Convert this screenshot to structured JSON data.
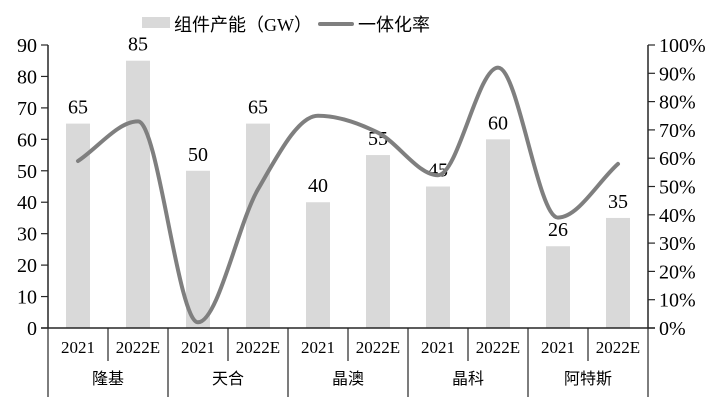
{
  "chart_data": {
    "type": "combo",
    "title": "",
    "legend_position": "top",
    "grid": false,
    "groups": [
      "隆基",
      "天合",
      "晶澳",
      "晶科",
      "阿特斯"
    ],
    "x_sublabels": [
      "2021",
      "2022E",
      "2021",
      "2022E",
      "2021",
      "2022E",
      "2021",
      "2022E",
      "2021",
      "2022E"
    ],
    "series": [
      {
        "name": "组件产能（GW）",
        "type": "bar",
        "axis": "left",
        "color": "#d9d9d9",
        "values": [
          65,
          85,
          50,
          65,
          40,
          55,
          45,
          60,
          26,
          35
        ],
        "labels": [
          "65",
          "85",
          "50",
          "65",
          "40",
          "55",
          "45",
          "60",
          "26",
          "35"
        ]
      },
      {
        "name": "一体化率",
        "type": "line",
        "axis": "right",
        "unit": "%",
        "color": "#7f7f7f",
        "values": [
          59,
          73,
          2,
          49,
          75,
          69,
          54,
          92,
          39,
          58
        ]
      }
    ],
    "left_axis": {
      "min": 0,
      "max": 90,
      "step": 10,
      "tick_labels": [
        "0",
        "10",
        "20",
        "30",
        "40",
        "50",
        "60",
        "70",
        "80",
        "90"
      ]
    },
    "right_axis": {
      "min": 0,
      "max": 100,
      "step": 10,
      "tick_labels": [
        "0%",
        "10%",
        "20%",
        "30%",
        "40%",
        "50%",
        "60%",
        "70%",
        "80%",
        "90%",
        "100%"
      ]
    },
    "axis_color": "#262626"
  }
}
